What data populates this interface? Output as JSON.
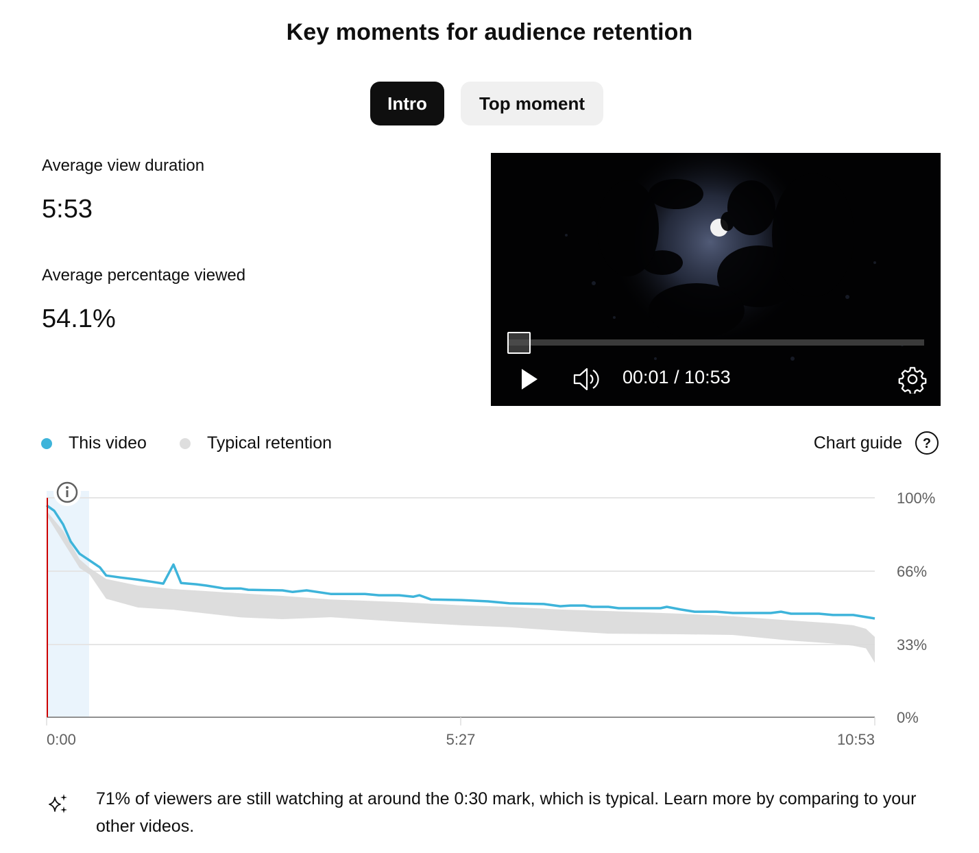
{
  "header": {
    "title": "Key moments for audience retention"
  },
  "tabs": [
    {
      "label": "Intro",
      "active": true
    },
    {
      "label": "Top moment",
      "active": false
    }
  ],
  "metrics": {
    "avg_view_duration": {
      "label": "Average view duration",
      "value": "5:53"
    },
    "avg_percentage_viewed": {
      "label": "Average percentage viewed",
      "value": "54.1%"
    }
  },
  "player": {
    "current_time": "00:01",
    "separator": "/",
    "duration": "10:53",
    "time_display": "00:01 / 10:53",
    "icons": [
      "play-icon",
      "volume-icon",
      "settings-gear-icon"
    ]
  },
  "legend": {
    "items": [
      {
        "label": "This video",
        "color": "#3eb4da"
      },
      {
        "label": "Typical retention",
        "color": "#dedede"
      }
    ],
    "chart_guide_label": "Chart guide",
    "chart_guide_icon": "help-circle-icon"
  },
  "colors": {
    "this_video": "#3eb4da",
    "typical_band": "#dcdcdc",
    "intro_highlight": "#eaf4fc",
    "playhead": "#cc0000",
    "gridline": "#e5e5e5",
    "axis": "#909090"
  },
  "chart_data": {
    "type": "line",
    "title": "Key moments for audience retention",
    "xlabel": "",
    "ylabel": "",
    "x_ticks": [
      "0:00",
      "5:27",
      "10:53"
    ],
    "y_ticks": [
      "0%",
      "33%",
      "66%",
      "100%"
    ],
    "ylim": [
      0,
      100
    ],
    "xlim_seconds": [
      0,
      653
    ],
    "grid": true,
    "legend_position": "top-left",
    "highlight_region": {
      "label": "Intro",
      "start_seconds": 0,
      "end_seconds": 33
    },
    "playhead_seconds": 1,
    "series": [
      {
        "name": "This video",
        "type": "line",
        "color": "#3eb4da",
        "x_seconds": [
          0,
          6,
          13,
          19,
          26,
          34,
          42,
          47,
          58,
          72,
          82,
          92,
          100,
          106,
          118,
          126,
          140,
          153,
          159,
          186,
          194,
          205,
          224,
          251,
          262,
          278,
          289,
          294,
          303,
          327,
          348,
          365,
          392,
          405,
          413,
          424,
          430,
          443,
          451,
          484,
          489,
          500,
          511,
          528,
          541,
          571,
          579,
          587,
          609,
          620,
          636,
          653
        ],
        "values": [
          96.6,
          94.1,
          87.9,
          80.1,
          74.5,
          71.4,
          68.3,
          64.6,
          63.7,
          62.7,
          61.8,
          60.9,
          69.6,
          61.2,
          60.6,
          60.0,
          58.7,
          58.7,
          58.1,
          57.8,
          57.1,
          57.8,
          56.2,
          56.2,
          55.6,
          55.6,
          54.9,
          55.6,
          53.7,
          53.4,
          52.8,
          51.9,
          51.6,
          50.6,
          50.9,
          50.9,
          50.3,
          50.3,
          49.7,
          49.7,
          50.3,
          49.1,
          48.1,
          48.1,
          47.5,
          47.5,
          48.1,
          47.2,
          47.2,
          46.6,
          46.6,
          45.0
        ]
      },
      {
        "name": "Typical retention",
        "type": "band",
        "color": "#dcdcdc",
        "x_seconds": [
          0,
          13,
          26,
          34,
          47,
          72,
          100,
          153,
          186,
          224,
          278,
          327,
          365,
          405,
          443,
          500,
          541,
          587,
          620,
          636,
          646,
          653
        ],
        "upper": [
          94.0,
          85.0,
          72.0,
          68.0,
          63.0,
          60.0,
          58.4,
          56.5,
          55.3,
          53.7,
          52.5,
          51.0,
          50.3,
          49.1,
          48.4,
          47.2,
          46.0,
          44.1,
          42.8,
          41.9,
          40.3,
          36.6
        ],
        "lower": [
          92.0,
          80.0,
          68.0,
          65.0,
          54.0,
          50.0,
          49.0,
          45.5,
          44.7,
          45.6,
          43.5,
          41.9,
          41.0,
          39.4,
          38.1,
          37.8,
          37.5,
          34.9,
          33.6,
          32.6,
          31.4,
          24.8
        ]
      }
    ]
  },
  "insight": {
    "icon": "sparkle-icon",
    "text": "71% of viewers are still watching at around the 0:30 mark, which is typical. Learn more by comparing to your other videos."
  }
}
